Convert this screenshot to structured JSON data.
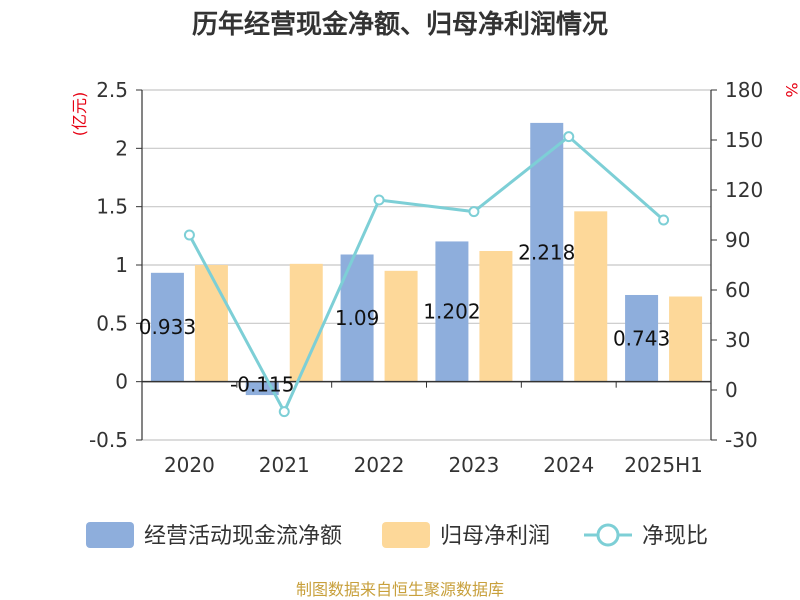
{
  "chart_data": {
    "type": "bar",
    "title": "历年经营现金净额、归母净利润情况",
    "categories": [
      "2020",
      "2021",
      "2022",
      "2023",
      "2024",
      "2025H1"
    ],
    "series": [
      {
        "name": "经营活动现金流净额",
        "type": "bar",
        "axis": "left",
        "color": "#8eaedc",
        "values": [
          0.933,
          -0.115,
          1.09,
          1.202,
          2.218,
          0.743
        ],
        "labels": [
          "0.933",
          "-0.115",
          "1.09",
          "1.202",
          "2.218",
          "0.743"
        ]
      },
      {
        "name": "归母净利润",
        "type": "bar",
        "axis": "left",
        "color": "#fdd899",
        "values": [
          1.0,
          1.01,
          0.95,
          1.12,
          1.46,
          0.73
        ]
      },
      {
        "name": "净现比",
        "type": "line",
        "axis": "right",
        "color": "#7dcfd6",
        "values": [
          93,
          -13,
          114,
          107,
          152,
          102
        ]
      }
    ],
    "y_left": {
      "label": "(亿元)",
      "ylim": [
        -0.5,
        2.5
      ],
      "ticks": [
        "2.5",
        "2",
        "1.5",
        "1",
        "0.5",
        "0",
        "-0.5"
      ]
    },
    "y_right": {
      "label": "%",
      "ylim": [
        -30,
        180
      ],
      "ticks": [
        "180",
        "150",
        "120",
        "90",
        "60",
        "30",
        "0",
        "-30"
      ]
    },
    "grid": true,
    "legend_position": "bottom",
    "source": "制图数据来自恒生聚源数据库"
  },
  "colors": {
    "grid": "#c8c8c8",
    "axis": "#333333",
    "unit": "#e60012",
    "source": "#c8a03c"
  }
}
